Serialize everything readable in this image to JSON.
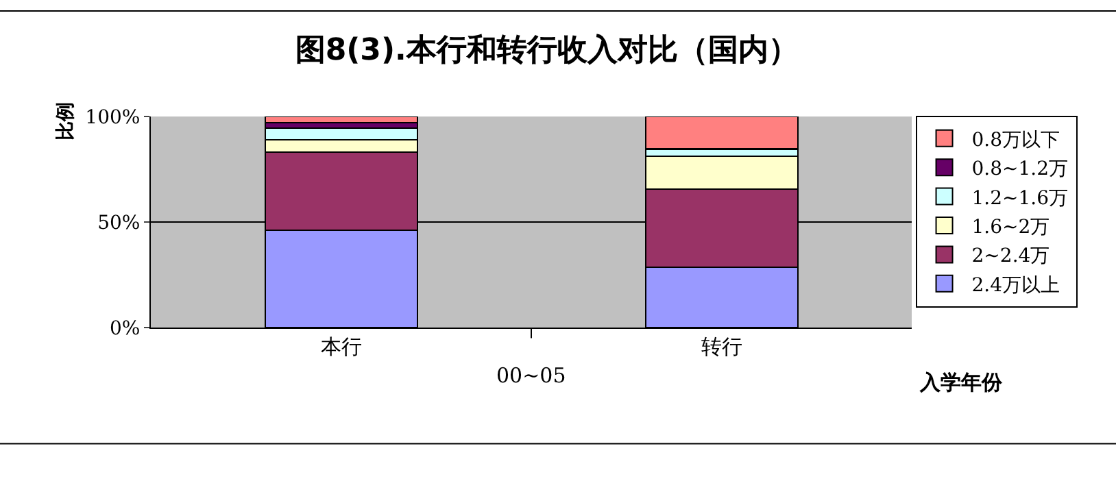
{
  "chart_data": {
    "type": "bar",
    "stacked": true,
    "title": "图8(3).本行和转行收入对比（国内）",
    "xlabel": "入学年份",
    "ylabel": "比例",
    "categories": [
      "本行",
      "转行"
    ],
    "series": [
      {
        "name": "2.4万以上",
        "color": "#9999ff",
        "values": [
          46.1,
          28.5
        ]
      },
      {
        "name": "2~2.4万",
        "color": "#993366",
        "values": [
          37.0,
          37.2
        ]
      },
      {
        "name": "1.6~2万",
        "color": "#ffffcc",
        "values": [
          5.9,
          15.4
        ]
      },
      {
        "name": "1.2~1.6万",
        "color": "#ccffff",
        "values": [
          5.4,
          3.3
        ]
      },
      {
        "name": "0.8~1.2万",
        "color": "#660066",
        "values": [
          2.6,
          0.2
        ]
      },
      {
        "name": "0.8万以下",
        "color": "#ff8080",
        "values": [
          3.0,
          15.4
        ]
      }
    ],
    "ylim": [
      0,
      100
    ],
    "yticks": [
      {
        "value": 0,
        "label": "0%"
      },
      {
        "value": 50,
        "label": "50%"
      },
      {
        "value": 100,
        "label": "100%"
      }
    ],
    "grid": "y",
    "legend": "right",
    "annotations": [
      "00~05"
    ]
  }
}
